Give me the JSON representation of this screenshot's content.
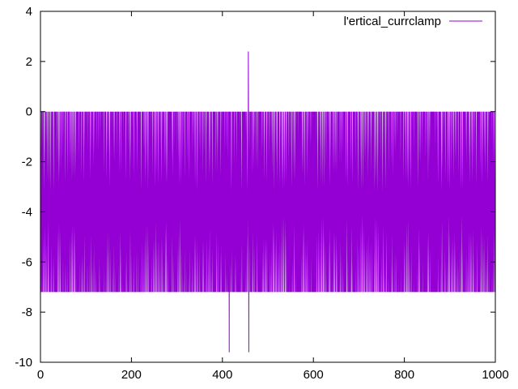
{
  "chart_data": {
    "type": "line",
    "title": "",
    "xlabel": "",
    "ylabel": "",
    "xlim": [
      0,
      1000
    ],
    "ylim": [
      -10,
      4
    ],
    "xticks": [
      0,
      200,
      400,
      600,
      800,
      1000
    ],
    "yticks": [
      4,
      2,
      0,
      -2,
      -4,
      -6,
      -8,
      -10
    ],
    "xtick_labels": [
      "0",
      "200",
      "400",
      "600",
      "800",
      "1000"
    ],
    "ytick_labels": [
      "4",
      "2",
      "0",
      "-2",
      "-4",
      "-6",
      "-8",
      "-10"
    ],
    "grid": false,
    "legend_position": "top-right",
    "series": [
      {
        "name": "l'ertical_currclamp",
        "color": "#9400d3",
        "baseline": 0,
        "trough": -7.2,
        "typical_range": [
          -7.2,
          0
        ],
        "spike_min": -9.6,
        "spike_max": 2.4,
        "spikes": [
          {
            "x": 415,
            "y": -9.6
          },
          {
            "x": 457,
            "y": 2.4
          },
          {
            "x": 458,
            "y": -9.6
          }
        ]
      }
    ]
  }
}
